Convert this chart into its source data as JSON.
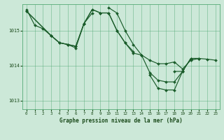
{
  "background_color": "#cce8d8",
  "plot_bg_color": "#cce8d8",
  "grid_color": "#55aa77",
  "line_color": "#1a5c2a",
  "marker_color": "#1a5c2a",
  "title": "Graphe pression niveau de la mer (hPa)",
  "label_color": "#1a4a1a",
  "ylim": [
    1012.75,
    1015.75
  ],
  "xlim": [
    -0.5,
    23.5
  ],
  "yticks": [
    1013,
    1014,
    1015
  ],
  "xticks": [
    0,
    1,
    2,
    3,
    4,
    5,
    6,
    7,
    8,
    9,
    10,
    11,
    12,
    13,
    14,
    15,
    16,
    17,
    18,
    19,
    20,
    21,
    22,
    23
  ],
  "series": [
    [
      [
        0,
        1015.6
      ],
      [
        1,
        1015.15
      ],
      [
        2,
        1015.05
      ],
      [
        3,
        1014.85
      ],
      [
        4,
        1014.65
      ],
      [
        5,
        1014.6
      ],
      [
        6,
        1014.55
      ],
      [
        7,
        1015.2
      ],
      [
        8,
        1015.5
      ]
    ],
    [
      [
        0,
        1015.55
      ],
      [
        3,
        1014.85
      ],
      [
        4,
        1014.65
      ],
      [
        5,
        1014.6
      ],
      [
        6,
        1014.5
      ],
      [
        7,
        1015.2
      ],
      [
        8,
        1015.6
      ],
      [
        9,
        1015.5
      ],
      [
        10,
        1015.5
      ],
      [
        11,
        1015.0
      ],
      [
        12,
        1014.65
      ],
      [
        13,
        1014.4
      ]
    ],
    [
      [
        10,
        1015.65
      ],
      [
        11,
        1015.5
      ],
      [
        12,
        1015.0
      ],
      [
        13,
        1014.6
      ],
      [
        14,
        1014.3
      ],
      [
        15,
        1013.8
      ],
      [
        16,
        1013.58
      ],
      [
        17,
        1013.53
      ],
      [
        18,
        1013.53
      ],
      [
        19,
        1013.83
      ],
      [
        20,
        1014.2
      ],
      [
        21,
        1014.2
      ]
    ],
    [
      [
        15,
        1013.73
      ],
      [
        16,
        1013.35
      ],
      [
        17,
        1013.3
      ],
      [
        18,
        1013.3
      ],
      [
        19,
        1013.83
      ]
    ],
    [
      [
        18,
        1013.83
      ],
      [
        19,
        1013.83
      ],
      [
        20,
        1014.2
      ],
      [
        21,
        1014.2
      ],
      [
        22,
        1014.18
      ],
      [
        23,
        1014.15
      ]
    ],
    [
      [
        0,
        1015.55
      ],
      [
        3,
        1014.85
      ],
      [
        4,
        1014.65
      ],
      [
        5,
        1014.6
      ],
      [
        6,
        1014.55
      ],
      [
        7,
        1015.2
      ],
      [
        8,
        1015.6
      ],
      [
        9,
        1015.5
      ],
      [
        10,
        1015.5
      ],
      [
        11,
        1015.0
      ],
      [
        12,
        1014.65
      ],
      [
        13,
        1014.35
      ],
      [
        14,
        1014.3
      ],
      [
        15,
        1014.15
      ],
      [
        16,
        1014.05
      ],
      [
        17,
        1014.05
      ],
      [
        18,
        1014.1
      ],
      [
        19,
        1013.9
      ],
      [
        20,
        1014.15
      ],
      [
        21,
        1014.2
      ]
    ]
  ]
}
